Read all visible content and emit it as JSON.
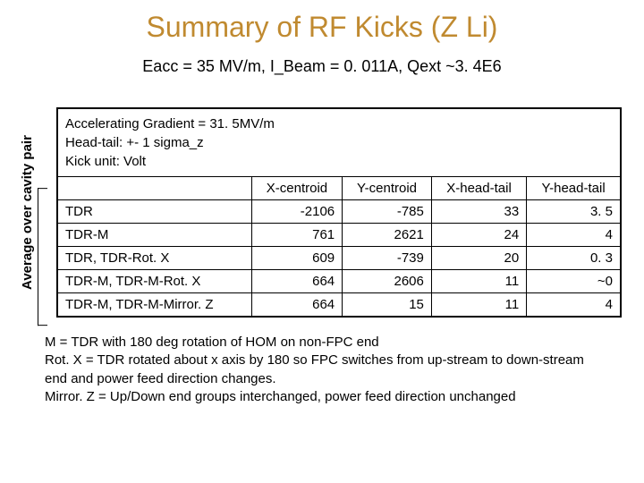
{
  "title": "Summary of RF Kicks (Z Li)",
  "subtitle": "Eacc = 35 MV/m, I_Beam = 0. 011A, Qext ~3. 4E6",
  "ylabel": "Average over cavity pair",
  "table": {
    "header_lines": [
      "Accelerating Gradient = 31. 5MV/m",
      "Head-tail: +- 1 sigma_z",
      "Kick unit: Volt"
    ],
    "columns": [
      "",
      "X-centroid",
      "Y-centroid",
      "X-head-tail",
      "Y-head-tail"
    ],
    "rows": [
      [
        "TDR",
        "-2106",
        "-785",
        "33",
        "3. 5"
      ],
      [
        "TDR-M",
        "761",
        "2621",
        "24",
        "4"
      ],
      [
        "TDR, TDR-Rot. X",
        "609",
        "-739",
        "20",
        "0. 3"
      ],
      [
        "TDR-M, TDR-M-Rot. X",
        "664",
        "2606",
        "11",
        "~0"
      ],
      [
        "TDR-M, TDR-M-Mirror. Z",
        "664",
        "15",
        "11",
        "4"
      ]
    ]
  },
  "footnote_lines": [
    "M = TDR with 180 deg rotation of HOM on non-FPC end",
    "Rot. X = TDR rotated about x axis by 180 so FPC switches from up-stream to down-stream end and power feed direction changes.",
    "Mirror. Z = Up/Down end groups interchanged, power feed direction unchanged"
  ]
}
